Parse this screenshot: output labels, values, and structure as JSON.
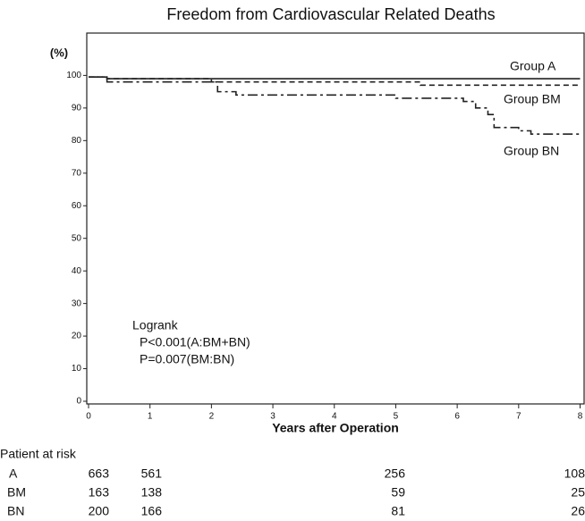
{
  "chart_data": {
    "type": "step-line",
    "title": "Freedom from Cardiovascular Related Deaths",
    "y_label": "(%)",
    "x_label": "Years after Operation",
    "xlim": [
      0,
      8.08
    ],
    "xticks": [
      0,
      1,
      2,
      3,
      4,
      5,
      6,
      7,
      8
    ],
    "ylim": [
      0,
      113
    ],
    "yticks": [
      0,
      10,
      20,
      30,
      40,
      50,
      60,
      70,
      80,
      90,
      100
    ],
    "grid": false,
    "series": [
      {
        "name": "Group A",
        "color": "#222222",
        "dash": "none",
        "x": [
          0,
          0.3,
          0.3,
          8
        ],
        "values": [
          99.5,
          99.5,
          99,
          99
        ]
      },
      {
        "name": "Group BM",
        "color": "#222222",
        "dash": "6,4",
        "x": [
          0,
          0.3,
          0.3,
          2,
          2,
          5.4,
          5.4,
          8
        ],
        "values": [
          99.5,
          99.5,
          99,
          99,
          98,
          98,
          97,
          97
        ]
      },
      {
        "name": "Group BN",
        "color": "#222222",
        "dash": "11,4,3,4",
        "x": [
          0,
          0.3,
          0.3,
          2.1,
          2.1,
          2.4,
          2.4,
          5,
          5,
          6.1,
          6.1,
          6.3,
          6.3,
          6.5,
          6.5,
          6.6,
          6.6,
          7.0,
          7.0,
          7.2,
          7.2,
          8
        ],
        "values": [
          99.5,
          99.5,
          98,
          98,
          95,
          95,
          94,
          94,
          93,
          93,
          92,
          92,
          90,
          90,
          88,
          88,
          84,
          84,
          83,
          83,
          82,
          82
        ]
      }
    ],
    "annotations": [
      "Logrank",
      "P<0.001(A:BM+BN)",
      "P=0.007(BM:BN)"
    ],
    "risk_table": {
      "title": "Patient at risk",
      "rows": [
        {
          "label": "A",
          "values": [
            663,
            561,
            256,
            108
          ]
        },
        {
          "label": "BM",
          "values": [
            163,
            138,
            59,
            25
          ]
        },
        {
          "label": "BN",
          "values": [
            200,
            166,
            81,
            26
          ]
        }
      ]
    }
  }
}
